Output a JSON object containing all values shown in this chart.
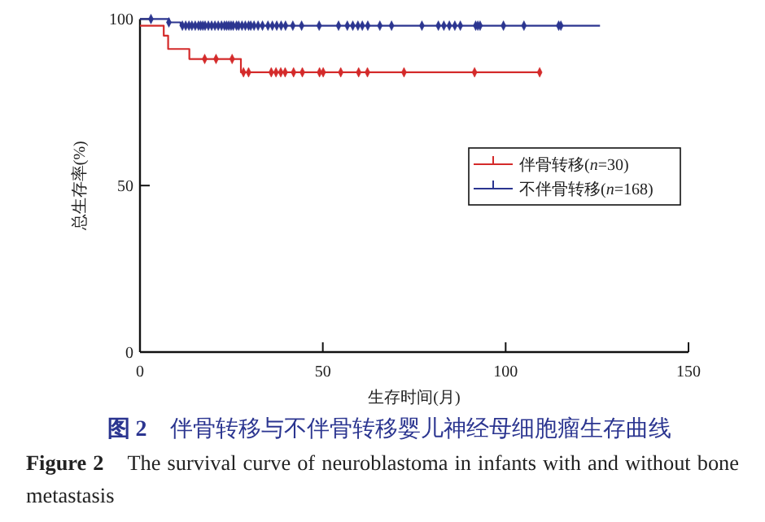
{
  "chart_data": {
    "type": "step",
    "title": "**图 2**　伴骨转移与不伴骨转移婴儿神经母细胞瘤生存曲线",
    "annotations": [
      "**Figure 2**　The survival curve of neuroblastoma in infants with and without bone metastasis"
    ],
    "xlabel": "生存时间(月)",
    "ylabel": "总生存率(%)",
    "xlim": [
      0,
      150
    ],
    "xticks": [
      0,
      50,
      100,
      150
    ],
    "ylim": [
      0,
      100
    ],
    "yticks": [
      0,
      50,
      100
    ],
    "legend": "right",
    "grid": false,
    "series": [
      {
        "name": "伴骨转移(*n*=30)",
        "color": "#d42a2a",
        "type": "step",
        "x": [
          0,
          6.5,
          7.7,
          13.5,
          27.6,
          109.3
        ],
        "values": [
          98,
          95,
          91,
          88,
          84,
          84
        ]
      },
      {
        "name": "不伴骨转移(*n*=168)",
        "color": "#2b3590",
        "type": "step",
        "x": [
          0,
          7.9,
          11.1,
          125.8
        ],
        "values": [
          100,
          99,
          98,
          98
        ]
      },
      {
        "color": "#d42a2a",
        "type": "scatter",
        "x": [
          17.7,
          20.8,
          25.2,
          28.3,
          29.7,
          35.9,
          37.2,
          38.5,
          39.7,
          42.0,
          44.4,
          49.1,
          50.1,
          54.9,
          59.8,
          62.2,
          72.2,
          91.5,
          109.3
        ],
        "values": [
          88,
          88,
          88,
          84,
          84,
          84,
          84,
          84,
          84,
          84,
          84,
          84,
          84,
          84,
          84,
          84,
          84,
          84,
          84
        ]
      },
      {
        "color": "#2b3590",
        "type": "scatter",
        "x": [
          3.0,
          7.9,
          11.6,
          12.5,
          13.4,
          14.2,
          15.1,
          16.0,
          16.6,
          17.2,
          17.8,
          18.7,
          19.6,
          20.5,
          21.4,
          22.3,
          23.1,
          23.7,
          24.3,
          24.9,
          25.5,
          26.4,
          27.0,
          27.9,
          28.8,
          29.7,
          30.3,
          31.2,
          32.3,
          33.5,
          35.0,
          36.2,
          37.4,
          38.6,
          39.8,
          41.8,
          44.2,
          49.0,
          54.3,
          56.7,
          58.2,
          59.6,
          60.8,
          62.3,
          65.6,
          68.8,
          77.1,
          81.6,
          83.1,
          84.6,
          86.1,
          87.6,
          91.8,
          92.4,
          93.0,
          99.4,
          105.0,
          114.5,
          115.1
        ],
        "values": [
          100,
          99,
          98,
          98,
          98,
          98,
          98,
          98,
          98,
          98,
          98,
          98,
          98,
          98,
          98,
          98,
          98,
          98,
          98,
          98,
          98,
          98,
          98,
          98,
          98,
          98,
          98,
          98,
          98,
          98,
          98,
          98,
          98,
          98,
          98,
          98,
          98,
          98,
          98,
          98,
          98,
          98,
          98,
          98,
          98,
          98,
          98,
          98,
          98,
          98,
          98,
          98,
          98,
          98,
          98,
          98,
          98,
          98,
          98
        ]
      }
    ]
  }
}
